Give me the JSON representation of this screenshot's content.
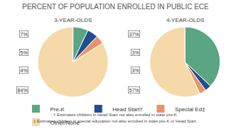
{
  "chart_data": {
    "type": "pie",
    "title": "PERCENT OF POPULATION ENROLLED IN PUBLIC ECE",
    "categories": [
      "Pre-K",
      "Head Start†",
      "Special Ed‡",
      "Other/None"
    ],
    "colors": [
      "#5aa582",
      "#1f4f8f",
      "#e8946b",
      "#f6d9a9"
    ],
    "series": [
      {
        "name": "3-YEAR-OLDS",
        "values": [
          7,
          5,
          4,
          84
        ],
        "value_labels": [
          "7%",
          "5%",
          "4%",
          "84%"
        ]
      },
      {
        "name": "4-YEAR-OLDS",
        "values": [
          37,
          3,
          3,
          57
        ],
        "value_labels": [
          "37%",
          "3%",
          "3%",
          "57%"
        ]
      }
    ],
    "data_labels": true,
    "legend": "bottom",
    "annotations": [
      "† Estimates children in Head Start not also enrolled in state pre-K.",
      "‡ Estimates children in special education not also enrolled in state pre-K or Head Start."
    ]
  }
}
